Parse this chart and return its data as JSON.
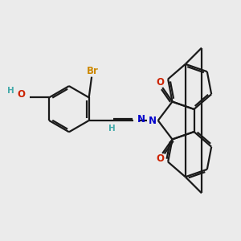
{
  "background_color": "#ebebeb",
  "bond_color": "#1a1a1a",
  "bond_width": 1.6,
  "figsize": [
    3.0,
    3.0
  ],
  "dpi": 100,
  "colors": {
    "Br": "#cc8800",
    "O": "#cc2200",
    "N": "#0000cc",
    "H": "#44aaaa",
    "HO": "#44aaaa",
    "C": "#1a1a1a"
  }
}
